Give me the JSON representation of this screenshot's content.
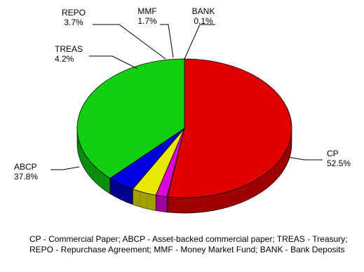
{
  "chart_data": {
    "type": "pie",
    "categories": [
      "CP",
      "ABCP",
      "TREAS",
      "REPO",
      "MMF",
      "BANK"
    ],
    "values": [
      52.5,
      37.8,
      4.2,
      3.7,
      1.7,
      0.1
    ],
    "labels": [
      "52.5%",
      "37.8%",
      "4.2%",
      "3.7%",
      "1.7%",
      "0.1%"
    ],
    "colors": [
      "#e00000",
      "#10d010",
      "#0000e0",
      "#e8e800",
      "#e000e0",
      "#4040ff"
    ],
    "side_colors": [
      "#a00000",
      "#0a900a",
      "#000090",
      "#a0a000",
      "#a000a0",
      "#2020b0"
    ],
    "style": "3d",
    "legend": "none"
  },
  "footnote": "CP - Commercial Paper; ABCP - Asset-backed commercial paper; TREAS - Treasury; REPO - Repurchase Agreement; MMF - Money Market Fund; BANK - Bank Deposits"
}
